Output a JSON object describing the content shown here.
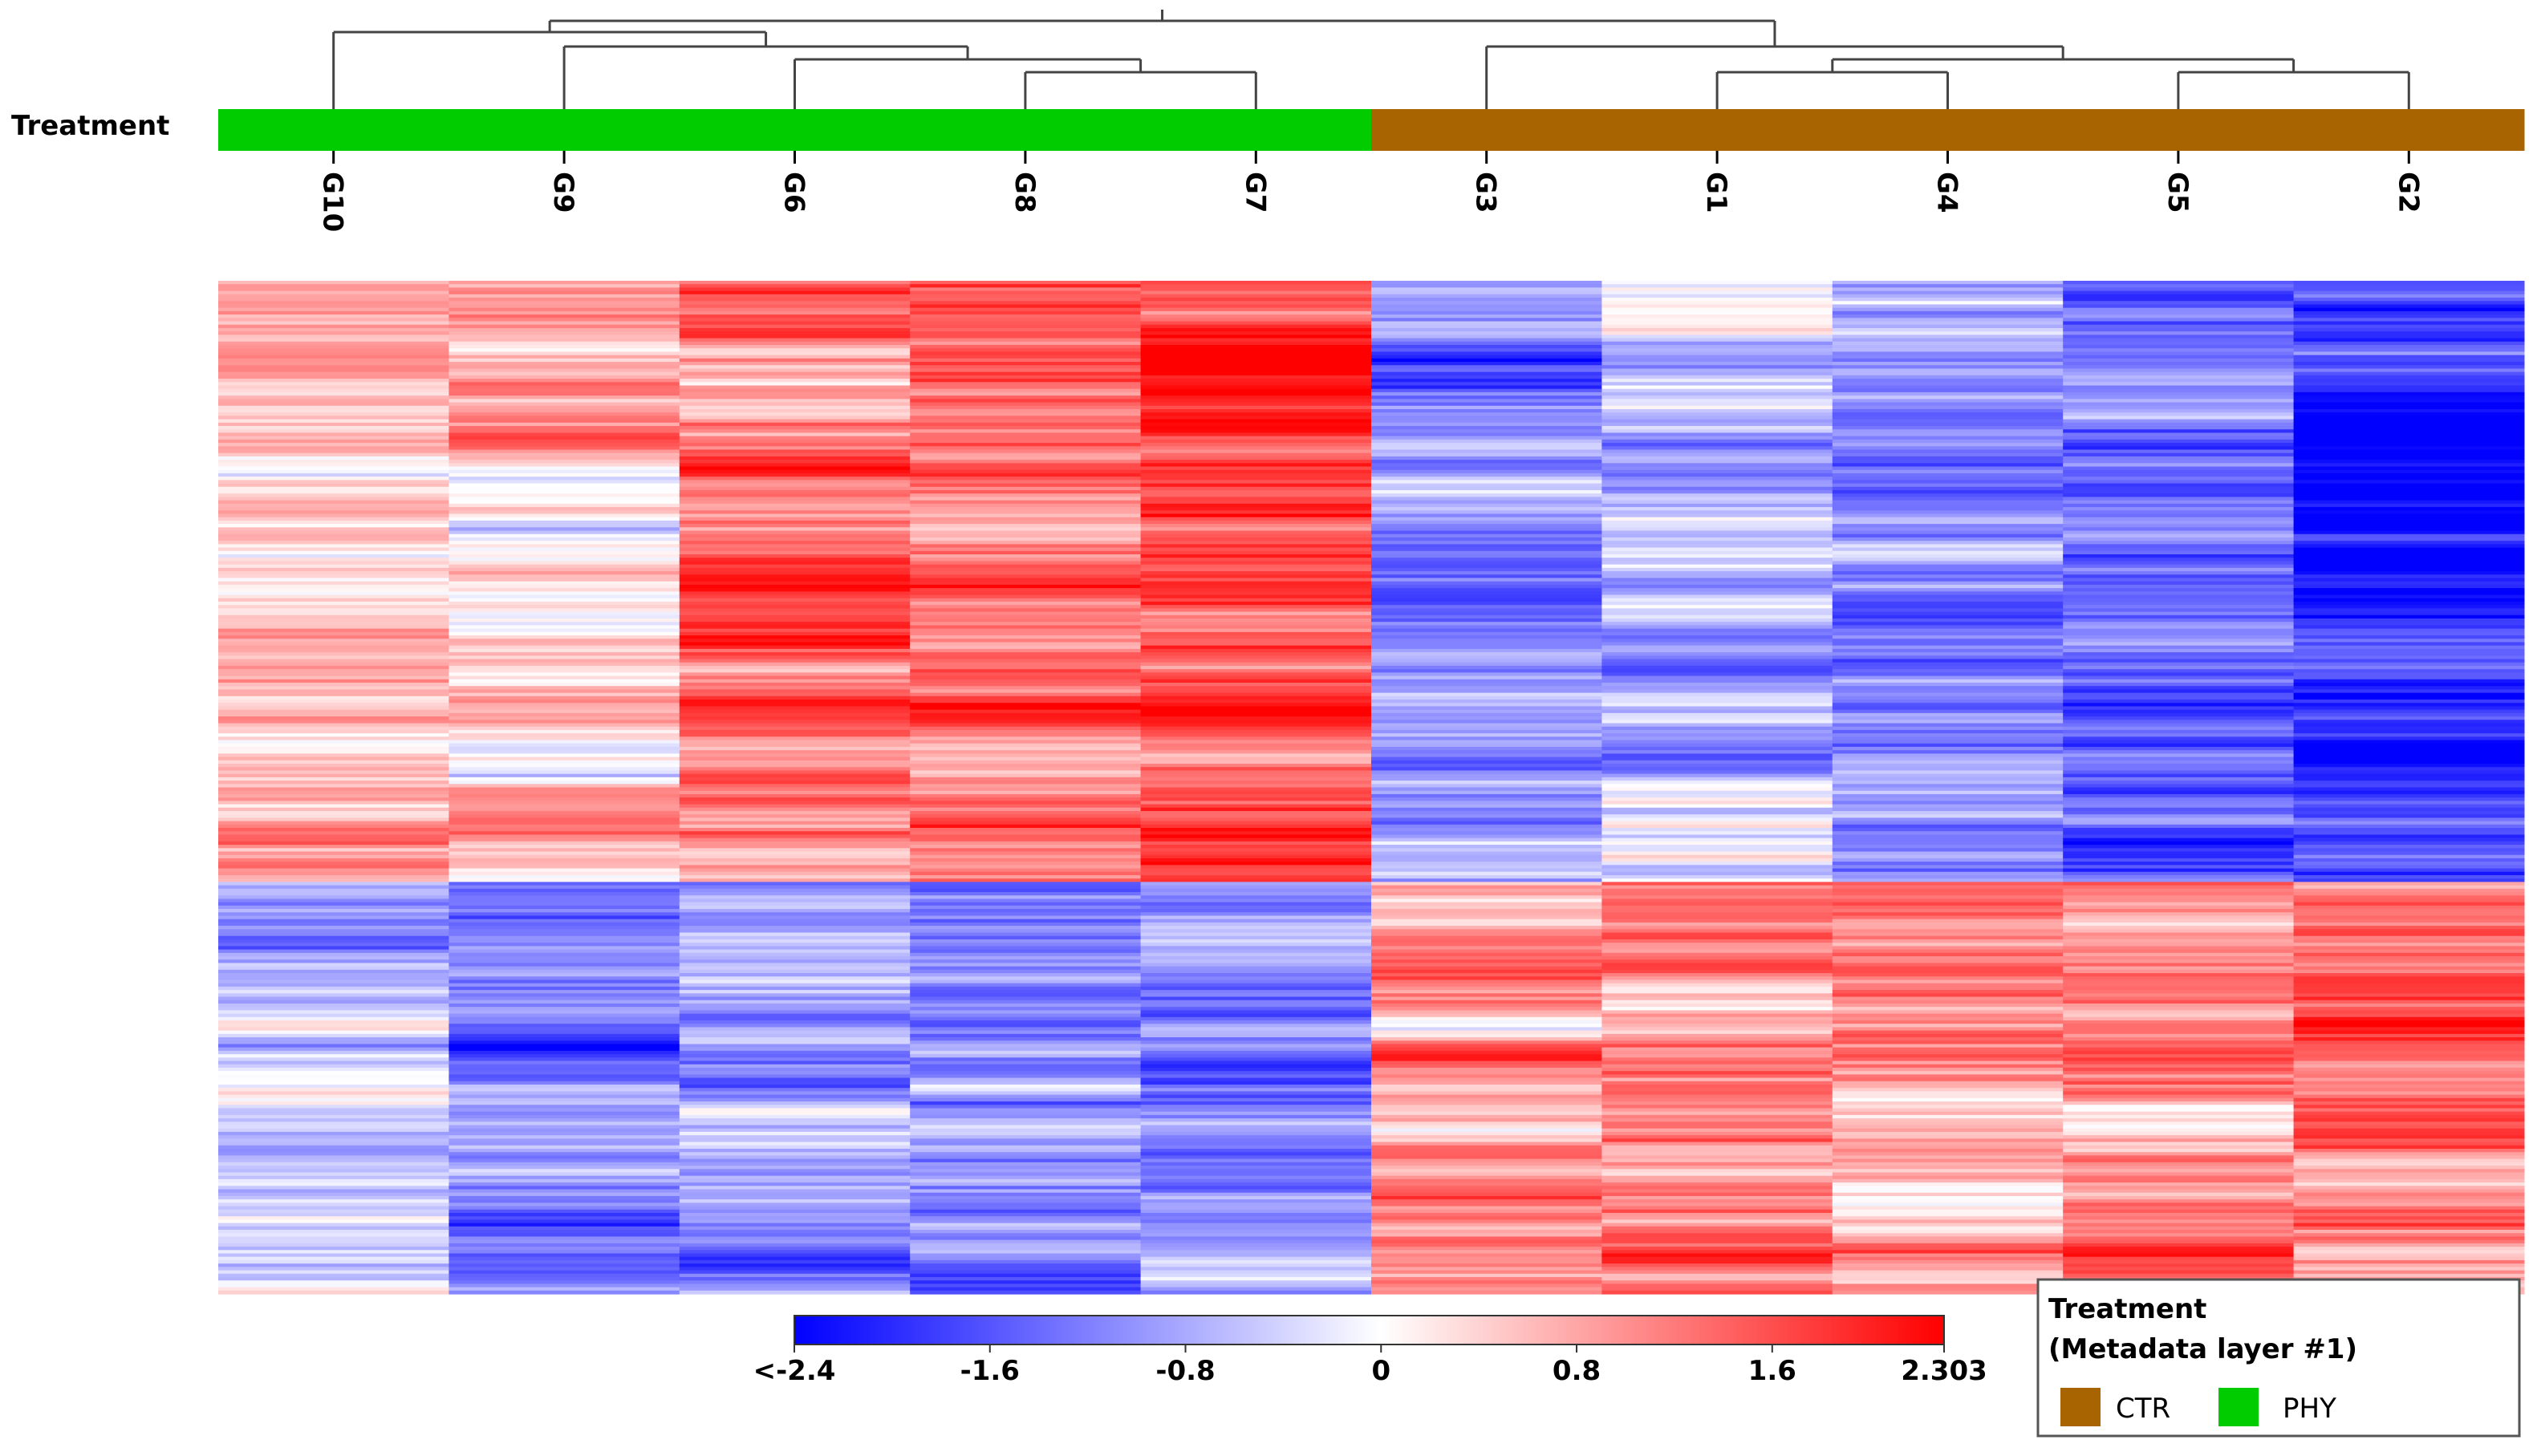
{
  "chart_data": {
    "type": "heatmap",
    "row_annotation_title": "Treatment",
    "columns": [
      "G10",
      "G9",
      "G6",
      "G8",
      "G7",
      "G3",
      "G1",
      "G4",
      "G5",
      "G2"
    ],
    "column_groups": [
      "PHY",
      "PHY",
      "PHY",
      "PHY",
      "PHY",
      "CTR",
      "CTR",
      "CTR",
      "CTR",
      "CTR"
    ],
    "row_count": 300,
    "cluster_split_row": 178,
    "column_profiles": {
      "G10": {
        "top": 0.55,
        "bottom": -0.55
      },
      "G9": {
        "top": 0.5,
        "bottom": -1.2
      },
      "G6": {
        "top": 1.2,
        "bottom": -0.9
      },
      "G8": {
        "top": 1.4,
        "bottom": -1.2
      },
      "G7": {
        "top": 1.4,
        "bottom": -1.1
      },
      "G3": {
        "top": -0.9,
        "bottom": 0.9
      },
      "G1": {
        "top": -0.5,
        "bottom": 1.1
      },
      "G4": {
        "top": -1.0,
        "bottom": 0.9
      },
      "G5": {
        "top": -1.4,
        "bottom": 1.0
      },
      "G2": {
        "top": -1.9,
        "bottom": 1.2
      }
    },
    "color_scale": {
      "min": -2.4,
      "max": 2.303,
      "low_color": "#0000ff",
      "mid_color": "#ffffff",
      "high_color": "#ff0000",
      "tick_labels": [
        "<-2.4",
        "-1.6",
        "-0.8",
        "0",
        "0.8",
        "1.6",
        "2.303"
      ],
      "tick_values": [
        -2.4,
        -1.6,
        -0.8,
        0,
        0.8,
        1.6,
        2.303
      ]
    },
    "legend": {
      "title_line1": "Treatment",
      "title_line2": "(Metadata layer #1)",
      "entries": [
        {
          "label": "CTR",
          "color": "#a86400"
        },
        {
          "label": "PHY",
          "color": "#00cc00"
        }
      ]
    },
    "group_colors": {
      "CTR": "#a86400",
      "PHY": "#00cc00"
    }
  }
}
